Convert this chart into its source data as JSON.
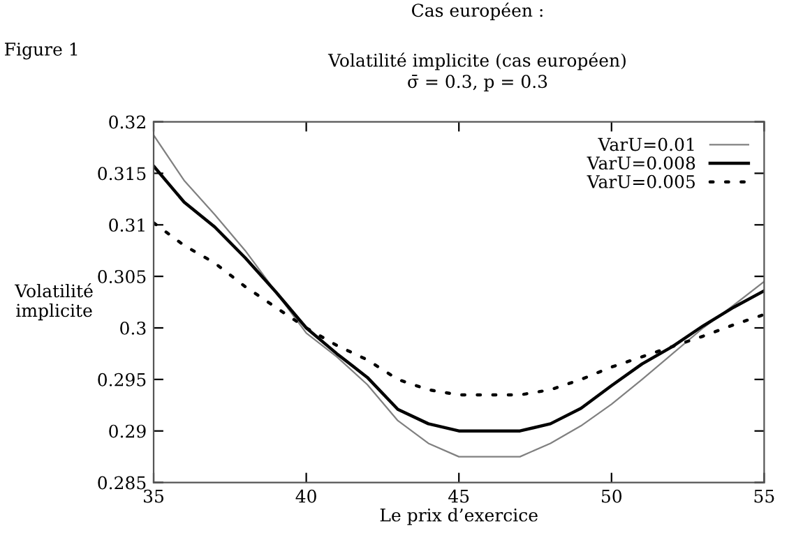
{
  "chart_data": {
    "type": "line",
    "title": "Volatilité implicite (cas européen)",
    "subtitle": "σ̄ = 0.3, p = 0.3",
    "xlabel": "Le prix d’exercice",
    "ylabel": "Volatilité\nimplicite",
    "annotations": [
      "Cas européen :",
      "Figure 1"
    ],
    "x": [
      35,
      36,
      37,
      38,
      39,
      40,
      41,
      42,
      43,
      44,
      45,
      46,
      47,
      48,
      49,
      50,
      51,
      52,
      53,
      54,
      55
    ],
    "series": [
      {
        "name": "VarU=0.01",
        "color": "#808080",
        "line_style": "solid",
        "values": [
          0.3187,
          0.3143,
          0.311,
          0.3075,
          0.3035,
          0.2995,
          0.2972,
          0.2945,
          0.291,
          0.2888,
          0.2875,
          0.2875,
          0.2875,
          0.2888,
          0.2905,
          0.2926,
          0.295,
          0.2975,
          0.3,
          0.3022,
          0.3045
        ]
      },
      {
        "name": "VarU=0.008",
        "color": "#000000",
        "line_style": "solid",
        "values": [
          0.3157,
          0.3122,
          0.3098,
          0.3068,
          0.3035,
          0.3,
          0.2975,
          0.2952,
          0.2921,
          0.2907,
          0.29,
          0.29,
          0.29,
          0.2907,
          0.2922,
          0.2944,
          0.2965,
          0.2982,
          0.3002,
          0.302,
          0.3036
        ]
      },
      {
        "name": "VarU=0.005",
        "color": "#000000",
        "line_style": "dotted",
        "values": [
          0.3102,
          0.308,
          0.3063,
          0.304,
          0.302,
          0.3,
          0.2983,
          0.2969,
          0.295,
          0.294,
          0.2935,
          0.2935,
          0.2935,
          0.294,
          0.295,
          0.2962,
          0.2972,
          0.2982,
          0.2992,
          0.3003,
          0.3013
        ]
      }
    ],
    "xlim": [
      35,
      55
    ],
    "xticks": [
      35,
      40,
      45,
      50,
      55
    ],
    "ylim": [
      0.285,
      0.32
    ],
    "yticks": [
      0.285,
      0.29,
      0.295,
      0.3,
      0.305,
      0.31,
      0.315,
      0.32
    ],
    "grid": false,
    "legend": "top right",
    "marker": "none"
  }
}
